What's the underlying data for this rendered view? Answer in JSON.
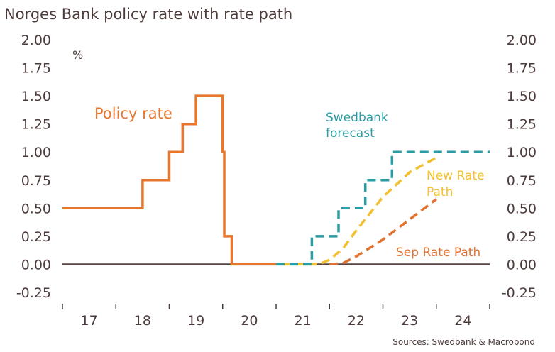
{
  "title": "Norges Bank policy rate with rate path",
  "unit_label": "%",
  "source": "Sources: Swedbank & Macrobond",
  "colors": {
    "policy": "#e8762c",
    "swedbank": "#2a9da4",
    "new_path": "#f3c031",
    "sep_path": "#e0712e",
    "zero_line": "#5a4444",
    "text": "#4d3b3b"
  },
  "chart_data": {
    "type": "line",
    "title": "Norges Bank policy rate with rate path",
    "ylabel": "%",
    "ylim": [
      -0.25,
      2.0
    ],
    "xlim": [
      2016.5,
      2024.5
    ],
    "yticks": [
      2.0,
      1.75,
      1.5,
      1.25,
      1.0,
      0.75,
      0.5,
      0.25,
      0.0,
      -0.25
    ],
    "ytick_labels": [
      "2.00",
      "1.75",
      "1.50",
      "1.25",
      "1.00",
      "0.75",
      "0.50",
      "0.25",
      "0.00",
      "-0.25"
    ],
    "x_tick_labels": [
      "17",
      "18",
      "19",
      "20",
      "21",
      "22",
      "23",
      "24"
    ],
    "x_label_positions": [
      2017,
      2018,
      2019,
      2020,
      2021,
      2022,
      2023,
      2024
    ],
    "grid": false,
    "series": [
      {
        "name": "Policy rate",
        "style": "solid",
        "x": [
          2016.5,
          2018.0,
          2018.0,
          2018.5,
          2018.5,
          2018.75,
          2018.75,
          2019.0,
          2019.0,
          2019.5,
          2019.5,
          2019.53,
          2019.53,
          2019.67,
          2019.67,
          2020.5
        ],
        "y": [
          0.5,
          0.5,
          0.75,
          0.75,
          1.0,
          1.0,
          1.25,
          1.25,
          1.5,
          1.5,
          1.0,
          1.0,
          0.25,
          0.25,
          0.0,
          0.0
        ]
      },
      {
        "name": "Swedbank forecast",
        "style": "dashed",
        "x": [
          2020.5,
          2021.17,
          2021.17,
          2021.67,
          2021.67,
          2022.17,
          2022.17,
          2022.67,
          2022.67,
          2024.5
        ],
        "y": [
          0.0,
          0.0,
          0.25,
          0.25,
          0.5,
          0.5,
          0.75,
          0.75,
          1.0,
          1.0
        ]
      },
      {
        "name": "New Rate Path",
        "style": "dashed",
        "x": [
          2020.6,
          2021.3,
          2021.5,
          2021.75,
          2022.0,
          2022.5,
          2023.0,
          2023.5
        ],
        "y": [
          0.0,
          0.0,
          0.04,
          0.14,
          0.3,
          0.6,
          0.82,
          0.95
        ]
      },
      {
        "name": "Sep Rate Path",
        "style": "dashed",
        "x": [
          2021.5,
          2021.75,
          2022.0,
          2022.5,
          2023.0,
          2023.5
        ],
        "y": [
          0.0,
          0.01,
          0.07,
          0.22,
          0.4,
          0.58
        ]
      }
    ],
    "annotations": [
      {
        "text": "Policy rate",
        "color": "policy"
      },
      {
        "text": "Swedbank",
        "color": "swedbank"
      },
      {
        "text": "forecast",
        "color": "swedbank"
      },
      {
        "text": "New Rate",
        "color": "new_path"
      },
      {
        "text": "Path",
        "color": "new_path"
      },
      {
        "text": "Sep Rate Path",
        "color": "sep_path"
      }
    ]
  }
}
